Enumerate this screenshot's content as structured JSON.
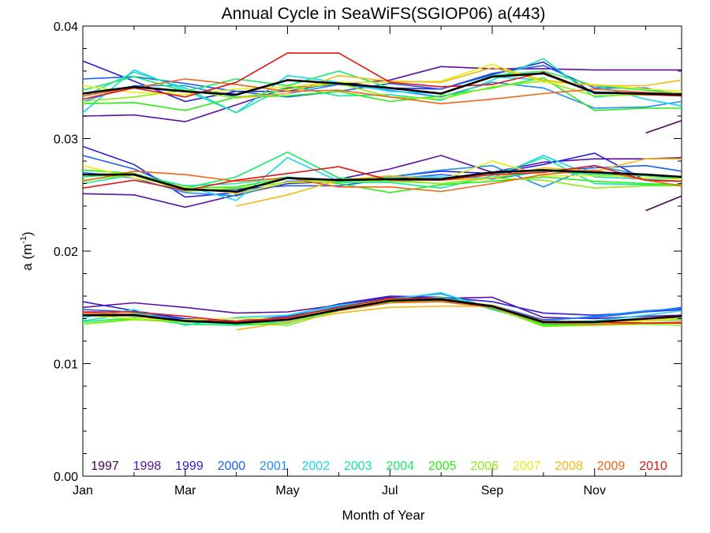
{
  "chart_data": {
    "type": "line",
    "title": "Annual Cycle in SeaWiFS(SGIOP06) a(443)",
    "xlabel": "Month of Year",
    "ylabel": "a (m",
    "ylabel_exponent": "-1",
    "ylabel_suffix": ")",
    "xlim": [
      1,
      12.7
    ],
    "ylim": [
      0,
      0.04
    ],
    "x_ticks": [
      {
        "value": 1,
        "label": "Jan"
      },
      {
        "value": 3,
        "label": "Mar"
      },
      {
        "value": 5,
        "label": "May"
      },
      {
        "value": 7,
        "label": "Jul"
      },
      {
        "value": 9,
        "label": "Sep"
      },
      {
        "value": 11,
        "label": "Nov"
      }
    ],
    "y_ticks": [
      {
        "value": 0,
        "label": "0.00"
      },
      {
        "value": 0.01,
        "label": "0.01"
      },
      {
        "value": 0.02,
        "label": "0.02"
      },
      {
        "value": 0.03,
        "label": "0.03"
      },
      {
        "value": 0.04,
        "label": "0.04"
      }
    ],
    "grid": false,
    "legend_placement": "bottom inside plot",
    "x": [
      1,
      2,
      3,
      4,
      5,
      6,
      7,
      8,
      9,
      10,
      11,
      12,
      12.7
    ],
    "series": [
      {
        "name": "1997",
        "color": "#4b0055",
        "bands": [
          [
            null,
            null,
            null,
            null,
            null,
            null,
            null,
            null,
            null,
            null,
            null,
            null,
            null
          ],
          [
            null,
            null,
            null,
            null,
            null,
            null,
            null,
            null,
            null,
            null,
            null,
            0.0236,
            0.0249
          ],
          [
            null,
            null,
            null,
            null,
            null,
            null,
            null,
            null,
            null,
            null,
            null,
            0.0305,
            0.0316
          ]
        ]
      },
      {
        "name": "1998",
        "color": "#5b0fa8",
        "bands": [
          [
            0.015,
            0.0154,
            0.015,
            0.0145,
            0.0146,
            0.0152,
            0.0159,
            0.0158,
            0.0159,
            0.0141,
            0.014,
            0.0142,
            0.0143
          ],
          [
            0.0251,
            0.025,
            0.0239,
            0.025,
            0.026,
            0.0264,
            0.0273,
            0.0285,
            0.027,
            0.0279,
            0.0282,
            0.0282,
            0.0283
          ],
          [
            0.032,
            0.0321,
            0.0315,
            0.033,
            0.0345,
            0.0348,
            0.0352,
            0.0364,
            0.0362,
            0.0362,
            0.0361,
            0.0361,
            0.0361
          ]
        ]
      },
      {
        "name": "1999",
        "color": "#2a1ee0",
        "bands": [
          [
            0.0155,
            0.0147,
            0.014,
            0.0138,
            0.0142,
            0.0153,
            0.016,
            0.0159,
            0.0155,
            0.0145,
            0.0143,
            0.0146,
            0.0148
          ],
          [
            0.0293,
            0.0277,
            0.0248,
            0.0252,
            0.026,
            0.0262,
            0.0266,
            0.0271,
            0.0269,
            0.0277,
            0.0287,
            0.0263,
            0.0262
          ],
          [
            0.0369,
            0.0351,
            0.0333,
            0.0342,
            0.0342,
            0.035,
            0.0345,
            0.0344,
            0.0357,
            0.0368,
            0.034,
            0.034,
            0.034
          ]
        ]
      },
      {
        "name": "2000",
        "color": "#1e5ef5",
        "bands": [
          [
            0.0148,
            0.0146,
            0.0139,
            0.0136,
            0.0142,
            0.0149,
            0.0156,
            0.0157,
            0.0152,
            0.0139,
            0.0141,
            0.0146,
            0.015
          ],
          [
            0.0285,
            0.0273,
            0.0254,
            0.0255,
            0.0258,
            0.0258,
            0.0264,
            0.0268,
            0.0264,
            0.0271,
            0.0274,
            0.0276,
            0.0271
          ],
          [
            0.0353,
            0.0355,
            0.0349,
            0.0342,
            0.0337,
            0.0342,
            0.0349,
            0.0344,
            0.0358,
            0.0365,
            0.0345,
            0.0345,
            0.0338
          ]
        ]
      },
      {
        "name": "2001",
        "color": "#1e8cff",
        "bands": [
          [
            0.0146,
            0.0143,
            0.0137,
            0.0137,
            0.0141,
            0.0151,
            0.0158,
            0.0162,
            0.015,
            0.0138,
            0.0142,
            0.0147,
            0.0149
          ],
          [
            0.027,
            0.0265,
            0.0252,
            0.0249,
            0.0262,
            0.0262,
            0.0266,
            0.0272,
            0.0276,
            0.0257,
            0.0276,
            0.0267,
            0.0264
          ],
          [
            0.0333,
            0.0347,
            0.0347,
            0.0337,
            0.034,
            0.0348,
            0.0343,
            0.0337,
            0.035,
            0.0345,
            0.0327,
            0.0328,
            0.0333
          ]
        ]
      },
      {
        "name": "2002",
        "color": "#14d8f0",
        "bands": [
          [
            0.0141,
            0.0148,
            0.0134,
            0.0141,
            0.0143,
            0.0152,
            0.0157,
            0.0163,
            0.0148,
            0.0137,
            0.0138,
            0.0143,
            0.0147
          ],
          [
            0.0263,
            0.0268,
            0.0258,
            0.0245,
            0.0283,
            0.0262,
            0.0266,
            0.0266,
            0.0265,
            0.0285,
            0.0266,
            0.0264,
            0.0262
          ],
          [
            0.0323,
            0.0361,
            0.0343,
            0.0323,
            0.0356,
            0.035,
            0.0342,
            0.034,
            0.0355,
            0.0352,
            0.0347,
            0.0335,
            0.0329
          ]
        ]
      },
      {
        "name": "2003",
        "color": "#14e8a8",
        "bands": [
          [
            0.0138,
            0.0145,
            0.0137,
            0.0135,
            0.0137,
            0.0149,
            0.0156,
            0.0159,
            0.0151,
            0.0136,
            0.0136,
            0.014,
            0.0142
          ],
          [
            0.026,
            0.0268,
            0.0258,
            0.026,
            0.0266,
            0.0261,
            0.0261,
            0.0256,
            0.0267,
            0.0283,
            0.026,
            0.0259,
            0.0258
          ],
          [
            0.0337,
            0.0359,
            0.0345,
            0.0323,
            0.0347,
            0.0338,
            0.0339,
            0.0334,
            0.0352,
            0.0371,
            0.0337,
            0.034,
            0.0338
          ]
        ]
      },
      {
        "name": "2004",
        "color": "#14f064",
        "bands": [
          [
            0.0137,
            0.0141,
            0.0135,
            0.0134,
            0.0136,
            0.0148,
            0.0155,
            0.0158,
            0.015,
            0.0135,
            0.0135,
            0.0138,
            0.0139
          ],
          [
            0.0266,
            0.0269,
            0.0256,
            0.0266,
            0.0288,
            0.0265,
            0.0263,
            0.026,
            0.0265,
            0.0271,
            0.0268,
            0.0267,
            0.0265
          ],
          [
            0.0343,
            0.0355,
            0.0342,
            0.0353,
            0.0347,
            0.036,
            0.0345,
            0.034,
            0.0356,
            0.036,
            0.0347,
            0.0343,
            0.034
          ]
        ]
      },
      {
        "name": "2005",
        "color": "#28f014",
        "bands": [
          [
            0.0135,
            0.014,
            0.0138,
            0.0136,
            0.0134,
            0.0147,
            0.0155,
            0.0158,
            0.0149,
            0.0134,
            0.0134,
            0.0136,
            0.0136
          ],
          [
            0.0272,
            0.0269,
            0.0256,
            0.0257,
            0.0265,
            0.026,
            0.0252,
            0.0259,
            0.0262,
            0.0266,
            0.0262,
            0.026,
            0.0259
          ],
          [
            0.0331,
            0.0332,
            0.0325,
            0.0337,
            0.0338,
            0.0342,
            0.0333,
            0.0338,
            0.0345,
            0.0354,
            0.0325,
            0.0327,
            0.0327
          ]
        ]
      },
      {
        "name": "2006",
        "color": "#8cf014",
        "bands": [
          [
            0.0135,
            0.0139,
            0.0137,
            0.0137,
            0.0134,
            0.0147,
            0.0154,
            0.0156,
            0.015,
            0.0133,
            0.0134,
            0.0135,
            0.0134
          ],
          [
            0.0263,
            0.0268,
            0.0253,
            0.0256,
            0.0261,
            0.0262,
            0.0262,
            0.026,
            0.0265,
            0.0263,
            0.0256,
            0.0258,
            0.0258
          ],
          [
            0.0333,
            0.0337,
            0.0343,
            0.0336,
            0.0344,
            0.0349,
            0.0337,
            0.0335,
            0.0346,
            0.0351,
            0.0338,
            0.0339,
            0.0339
          ]
        ]
      },
      {
        "name": "2007",
        "color": "#e6f014",
        "bands": [
          [
            0.0143,
            0.014,
            0.0139,
            0.014,
            0.014,
            0.015,
            0.0157,
            0.0157,
            0.0152,
            0.0137,
            0.0135,
            0.0138,
            0.014
          ],
          [
            0.0276,
            0.0265,
            0.0257,
            0.0251,
            0.0261,
            0.0263,
            0.0265,
            0.0263,
            0.028,
            0.0267,
            0.0267,
            0.0265,
            0.0264
          ],
          [
            0.0347,
            0.0341,
            0.0339,
            0.0344,
            0.0346,
            0.035,
            0.035,
            0.0351,
            0.0366,
            0.035,
            0.0348,
            0.0344,
            0.0342
          ]
        ]
      },
      {
        "name": "2008",
        "color": "#f5b914",
        "bands": [
          [
            null,
            null,
            null,
            0.013,
            0.0137,
            0.0145,
            0.015,
            0.0151,
            0.0151,
            0.0138,
            0.0137,
            0.0139,
            0.0141
          ],
          [
            null,
            null,
            null,
            0.024,
            0.025,
            0.0263,
            0.0267,
            0.0263,
            0.0265,
            0.0274,
            0.0271,
            0.0282,
            0.0282
          ],
          [
            null,
            null,
            null,
            0.0336,
            0.034,
            0.0356,
            0.0351,
            0.035,
            0.0363,
            0.0352,
            0.0347,
            0.0347,
            0.0352
          ]
        ]
      },
      {
        "name": "2009",
        "color": "#f56414",
        "bands": [
          [
            0.0145,
            0.0144,
            0.0138,
            0.0138,
            0.014,
            0.0147,
            0.0154,
            0.0155,
            0.015,
            0.0136,
            0.0135,
            0.0136,
            0.0137
          ],
          [
            0.0262,
            0.0271,
            0.0268,
            0.0262,
            0.0265,
            0.0257,
            0.0257,
            0.0253,
            0.026,
            0.0268,
            0.0272,
            0.0263,
            0.0258
          ],
          [
            0.0338,
            0.0345,
            0.0353,
            0.0348,
            0.0342,
            0.0343,
            0.0337,
            0.0331,
            0.0335,
            0.034,
            0.0344,
            0.0341,
            0.034
          ]
        ]
      },
      {
        "name": "2010",
        "color": "#e61414",
        "bands": [
          [
            0.0146,
            0.0146,
            0.0142,
            0.0137,
            0.0141,
            0.015,
            0.0158,
            0.0158,
            0.0151,
            0.0137,
            0.0137,
            0.0136,
            0.0136
          ],
          [
            0.0256,
            0.0263,
            0.0254,
            0.0263,
            0.0269,
            0.0275,
            0.0263,
            0.0263,
            0.0268,
            0.027,
            0.0276,
            0.0263,
            0.0262
          ],
          [
            0.0335,
            0.0345,
            0.0337,
            0.035,
            0.0376,
            0.0376,
            0.035,
            0.0346,
            0.0348,
            0.0359,
            0.0341,
            0.0339,
            0.0338
          ]
        ]
      }
    ],
    "mean": {
      "color": "#000000",
      "bands": [
        [
          0.0143,
          0.0143,
          0.0138,
          0.0136,
          0.0139,
          0.0148,
          0.0156,
          0.0157,
          0.0151,
          0.0137,
          0.0137,
          0.014,
          0.0142
        ],
        [
          0.0268,
          0.0268,
          0.0255,
          0.0253,
          0.0265,
          0.0263,
          0.0264,
          0.0264,
          0.027,
          0.0272,
          0.027,
          0.0268,
          0.0266
        ],
        [
          0.034,
          0.0346,
          0.0342,
          0.0339,
          0.0352,
          0.0349,
          0.0345,
          0.034,
          0.0355,
          0.0358,
          0.0341,
          0.034,
          0.0339
        ]
      ]
    }
  }
}
